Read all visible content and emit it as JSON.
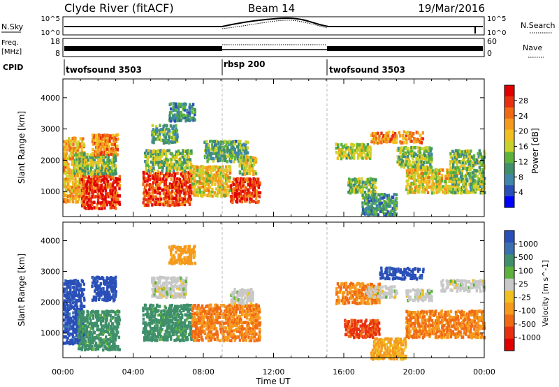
{
  "header": {
    "station": "Clyde River (fitACF)",
    "beam": "Beam 14",
    "date": "19/Mar/2016"
  },
  "top_panels": {
    "nsky_label": "N.Sky",
    "nsky_ticks": [
      "10^5",
      "10^0"
    ],
    "nsearch_label": "N.Search",
    "nsearch_ticks": [
      "10^5",
      "10^0"
    ],
    "freq_label_1": "Freq.",
    "freq_label_2": "[MHz]",
    "freq_ticks": [
      "18",
      "8"
    ],
    "nave_label": "Nave",
    "nave_ticks": [
      "60",
      "0"
    ],
    "cpid_label": "CPID",
    "cpid_segments": [
      {
        "label": "twofsound 3503",
        "start_h": 0,
        "end_h": 9
      },
      {
        "label": "rbsp 200",
        "start_h": 9,
        "end_h": 15
      },
      {
        "label": "twofsound 3503",
        "start_h": 15,
        "end_h": 24
      }
    ]
  },
  "chart_data": [
    {
      "type": "heatmap",
      "name": "power",
      "ylabel": "Slant Range [km]",
      "yticks": [
        1000,
        2000,
        3000,
        4000
      ],
      "ylim": [
        200,
        4600
      ],
      "xlim": [
        0,
        24
      ],
      "colorbar_label": "Power [dB]",
      "colorbar_ticks": [
        "4",
        "8",
        "12",
        "16",
        "20",
        "24",
        "28"
      ],
      "colorbar_colors": [
        "#0000ff",
        "#2a4fb8",
        "#3f86a8",
        "#3f8f6a",
        "#5cb23c",
        "#c9d22c",
        "#f0c020",
        "#f59a1c",
        "#f06a14",
        "#e83010",
        "#e00000"
      ],
      "regions": [
        {
          "x0": 0.0,
          "x1": 1.2,
          "y0": 700,
          "y1": 2800,
          "v": 20
        },
        {
          "x0": 1.0,
          "x1": 3.2,
          "y0": 500,
          "y1": 1600,
          "v": 27
        },
        {
          "x0": 0.6,
          "x1": 3.0,
          "y0": 1600,
          "y1": 2300,
          "v": 14
        },
        {
          "x0": 1.6,
          "x1": 3.1,
          "y0": 2200,
          "y1": 2900,
          "v": 22
        },
        {
          "x0": 4.5,
          "x1": 7.3,
          "y0": 600,
          "y1": 1700,
          "v": 26
        },
        {
          "x0": 4.6,
          "x1": 7.3,
          "y0": 1700,
          "y1": 2400,
          "v": 14
        },
        {
          "x0": 5.0,
          "x1": 6.5,
          "y0": 2600,
          "y1": 3200,
          "v": 12
        },
        {
          "x0": 6.0,
          "x1": 7.5,
          "y0": 3300,
          "y1": 3900,
          "v": 10
        },
        {
          "x0": 7.3,
          "x1": 9.5,
          "y0": 900,
          "y1": 1900,
          "v": 18
        },
        {
          "x0": 8.0,
          "x1": 10.5,
          "y0": 2000,
          "y1": 2700,
          "v": 12
        },
        {
          "x0": 9.5,
          "x1": 11.2,
          "y0": 700,
          "y1": 1500,
          "v": 26
        },
        {
          "x0": 10.0,
          "x1": 11.0,
          "y0": 1600,
          "y1": 2200,
          "v": 16
        },
        {
          "x0": 15.5,
          "x1": 17.5,
          "y0": 2100,
          "y1": 2600,
          "v": 16
        },
        {
          "x0": 16.2,
          "x1": 17.8,
          "y0": 1000,
          "y1": 1500,
          "v": 14
        },
        {
          "x0": 17.5,
          "x1": 20.5,
          "y0": 2600,
          "y1": 3000,
          "v": 22
        },
        {
          "x0": 17.0,
          "x1": 19.0,
          "y0": 300,
          "y1": 1000,
          "v": 10
        },
        {
          "x0": 19.5,
          "x1": 22.5,
          "y0": 1000,
          "y1": 1800,
          "v": 18
        },
        {
          "x0": 19.0,
          "x1": 21.0,
          "y0": 1800,
          "y1": 2500,
          "v": 14
        },
        {
          "x0": 22.0,
          "x1": 24.0,
          "y0": 1000,
          "y1": 2400,
          "v": 14
        }
      ]
    },
    {
      "type": "heatmap",
      "name": "velocity",
      "ylabel": "Slant Range [km]",
      "yticks": [
        1000,
        2000,
        3000,
        4000
      ],
      "ylim": [
        200,
        4600
      ],
      "xlim": [
        0,
        24
      ],
      "colorbar_label": "Velocity [m s^-1]",
      "colorbar_ticks": [
        "1000",
        "500",
        "100",
        "25",
        "-25",
        "-100",
        "-500",
        "-1000"
      ],
      "colorbar_colors": [
        "#2a4fb8",
        "#3a6fb0",
        "#3f8f6a",
        "#5cb23c",
        "#c8c8c8",
        "#f0c020",
        "#f59a1c",
        "#f06a14",
        "#e83010",
        "#e00000"
      ],
      "regions": [
        {
          "x0": 0.0,
          "x1": 1.2,
          "y0": 700,
          "y1": 2800,
          "v": 750
        },
        {
          "x0": 0.8,
          "x1": 3.2,
          "y0": 500,
          "y1": 1800,
          "v": 150
        },
        {
          "x0": 1.6,
          "x1": 3.0,
          "y0": 2100,
          "y1": 2900,
          "v": 800
        },
        {
          "x0": 4.5,
          "x1": 7.3,
          "y0": 800,
          "y1": 2000,
          "v": 150
        },
        {
          "x0": 5.0,
          "x1": 7.0,
          "y0": 2200,
          "y1": 2900,
          "v": 0
        },
        {
          "x0": 6.0,
          "x1": 7.5,
          "y0": 3300,
          "y1": 3900,
          "v": -150
        },
        {
          "x0": 7.3,
          "x1": 11.2,
          "y0": 800,
          "y1": 2000,
          "v": -300
        },
        {
          "x0": 9.5,
          "x1": 10.8,
          "y0": 2000,
          "y1": 2500,
          "v": 0
        },
        {
          "x0": 15.5,
          "x1": 18.0,
          "y0": 2000,
          "y1": 2700,
          "v": -300
        },
        {
          "x0": 16.0,
          "x1": 18.0,
          "y0": 900,
          "y1": 1500,
          "v": -600
        },
        {
          "x0": 17.2,
          "x1": 19.0,
          "y0": 2200,
          "y1": 2600,
          "v": 0
        },
        {
          "x0": 18.0,
          "x1": 20.5,
          "y0": 2800,
          "y1": 3200,
          "v": 800
        },
        {
          "x0": 17.5,
          "x1": 19.5,
          "y0": 200,
          "y1": 900,
          "v": -120
        },
        {
          "x0": 19.5,
          "x1": 21.0,
          "y0": 2100,
          "y1": 2500,
          "v": 0
        },
        {
          "x0": 19.5,
          "x1": 24.0,
          "y0": 900,
          "y1": 1800,
          "v": -300
        },
        {
          "x0": 21.5,
          "x1": 24.0,
          "y0": 2400,
          "y1": 2800,
          "v": 0
        }
      ]
    }
  ],
  "xaxis": {
    "label": "Time UT",
    "ticks": [
      "00:00",
      "04:00",
      "08:00",
      "12:00",
      "16:00",
      "20:00",
      "00:00"
    ],
    "tick_hours": [
      0,
      4,
      8,
      12,
      16,
      20,
      24
    ]
  }
}
